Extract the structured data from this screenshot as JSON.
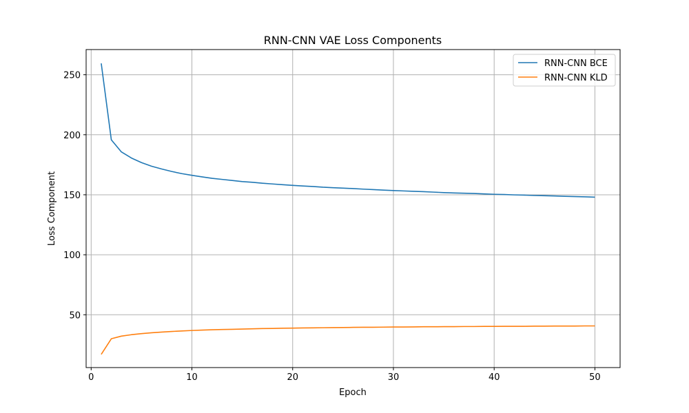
{
  "chart_data": {
    "type": "line",
    "title": "RNN-CNN VAE Loss Components",
    "xlabel": "Epoch",
    "ylabel": "Loss Component",
    "xlim": [
      -0.5,
      52.5
    ],
    "ylim": [
      6,
      271
    ],
    "xticks": [
      0,
      10,
      20,
      30,
      40,
      50
    ],
    "yticks": [
      50,
      100,
      150,
      200,
      250
    ],
    "grid": true,
    "legend_position": "top-right",
    "x": [
      1,
      2,
      3,
      4,
      5,
      6,
      7,
      8,
      9,
      10,
      11,
      12,
      13,
      14,
      15,
      16,
      17,
      18,
      19,
      20,
      21,
      22,
      23,
      24,
      25,
      26,
      27,
      28,
      29,
      30,
      31,
      32,
      33,
      34,
      35,
      36,
      37,
      38,
      39,
      40,
      41,
      42,
      43,
      44,
      45,
      46,
      47,
      48,
      49,
      50
    ],
    "series": [
      {
        "name": "RNN-CNN BCE",
        "color": "#1f77b4",
        "values": [
          259.5,
          195.8,
          185.7,
          180.6,
          176.8,
          173.8,
          171.5,
          169.4,
          167.6,
          166.2,
          164.9,
          163.7,
          162.8,
          161.9,
          161.0,
          160.4,
          159.6,
          159.0,
          158.4,
          157.8,
          157.3,
          156.9,
          156.3,
          155.9,
          155.5,
          155.2,
          154.7,
          154.3,
          153.9,
          153.5,
          153.2,
          152.9,
          152.6,
          152.2,
          151.8,
          151.5,
          151.3,
          151.1,
          150.7,
          150.4,
          150.2,
          149.9,
          149.7,
          149.4,
          149.2,
          149.0,
          148.7,
          148.5,
          148.3,
          148.0
        ]
      },
      {
        "name": "RNN-CNN KLD",
        "color": "#ff7f0e",
        "values": [
          17.0,
          30.0,
          32.2,
          33.4,
          34.3,
          35.0,
          35.6,
          36.1,
          36.5,
          36.9,
          37.2,
          37.5,
          37.7,
          37.9,
          38.1,
          38.3,
          38.5,
          38.6,
          38.8,
          38.9,
          39.0,
          39.1,
          39.2,
          39.3,
          39.4,
          39.5,
          39.6,
          39.6,
          39.7,
          39.8,
          39.8,
          39.9,
          40.0,
          40.0,
          40.1,
          40.1,
          40.2,
          40.2,
          40.3,
          40.3,
          40.4,
          40.4,
          40.4,
          40.5,
          40.5,
          40.6,
          40.6,
          40.6,
          40.7,
          40.7
        ]
      }
    ]
  }
}
